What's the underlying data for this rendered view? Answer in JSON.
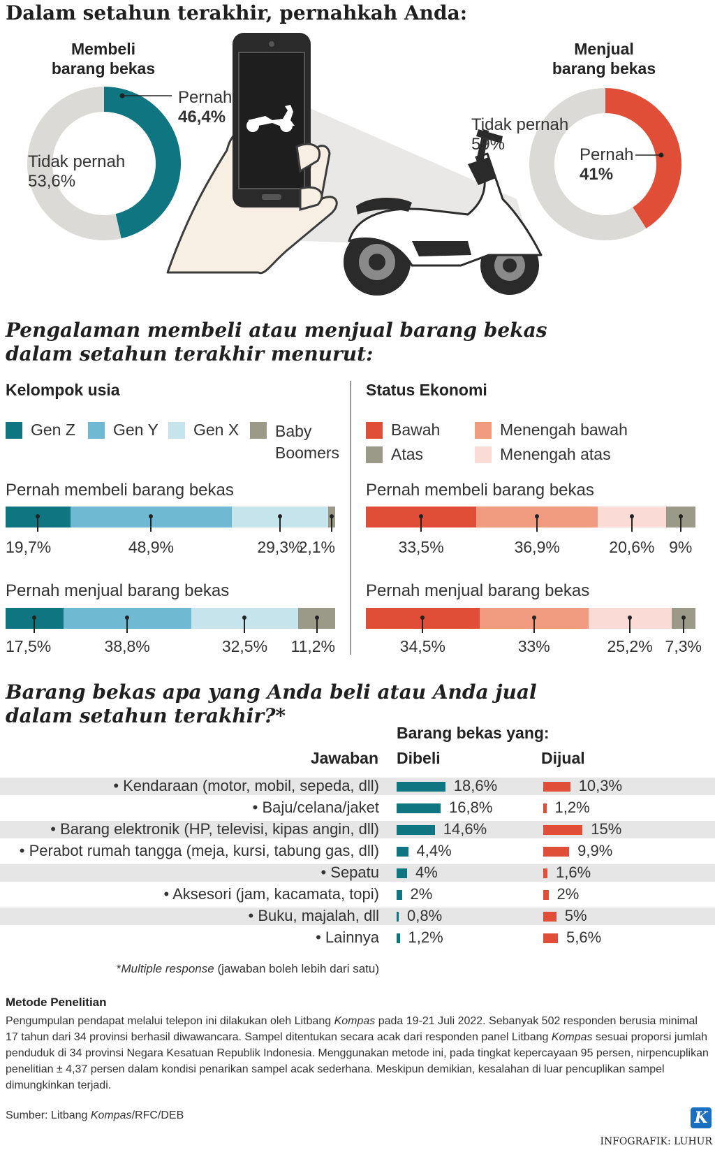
{
  "header": {
    "title": "Dalam setahun terakhir, pernahkah Anda:"
  },
  "donuts": {
    "buy": {
      "title_line1": "Membeli",
      "title_line2": "barang bekas",
      "yes_label": "Pernah",
      "yes_value": "46,4%",
      "no_label": "Tidak pernah",
      "no_value": "53,6%",
      "yes_share": 0.464,
      "color": "#0f7580"
    },
    "sell": {
      "title_line1": "Menjual",
      "title_line2": "barang bekas",
      "yes_label": "Pernah",
      "yes_value": "41%",
      "no_label": "Tidak pernah",
      "no_value": "59%",
      "yes_share": 0.41,
      "color": "#e04e37"
    },
    "rest_color": "#dcdad6"
  },
  "section2": {
    "title_line1": "Pengalaman membeli atau menjual barang bekas",
    "title_line2": "dalam setahun terakhir menurut:",
    "age": {
      "heading": "Kelompok usia",
      "legend": [
        {
          "label": "Gen Z",
          "color": "#0f7580"
        },
        {
          "label": "Gen Y",
          "color": "#6fb9d2"
        },
        {
          "label": "Gen X",
          "color": "#c5e4ec"
        },
        {
          "label_line1": "Baby",
          "label_line2": "Boomers",
          "color": "#9b9a88"
        }
      ],
      "buy": {
        "label": "Pernah membeli barang bekas",
        "values": [
          19.7,
          48.9,
          29.3,
          2.1
        ],
        "texts": [
          "19,7%",
          "48,9%",
          "29,3%",
          "2,1%"
        ]
      },
      "sell": {
        "label": "Pernah menjual barang bekas",
        "values": [
          17.5,
          38.8,
          32.5,
          11.2
        ],
        "texts": [
          "17,5%",
          "38,8%",
          "32,5%",
          "11,2%"
        ]
      }
    },
    "econ": {
      "heading": "Status Ekonomi",
      "legend": [
        {
          "label": "Bawah",
          "color": "#e04e37"
        },
        {
          "label": "Menengah bawah",
          "color": "#f09a80"
        },
        {
          "label": "Atas",
          "color": "#9b9a88"
        },
        {
          "label": "Menengah atas",
          "color": "#fadbd5"
        }
      ],
      "buy": {
        "label": "Pernah membeli barang bekas",
        "values": [
          33.5,
          36.9,
          20.6,
          9
        ],
        "texts": [
          "33,5%",
          "36,9%",
          "20,6%",
          "9%"
        ]
      },
      "sell": {
        "label": "Pernah menjual barang bekas",
        "values": [
          34.5,
          33,
          25.2,
          7.3
        ],
        "texts": [
          "34,5%",
          "33%",
          "25,2%",
          "7,3%"
        ]
      }
    }
  },
  "section3": {
    "title_line1": "Barang bekas apa yang Anda beli atau Anda jual",
    "title_line2": "dalam setahun terakhir?*",
    "sub_heading": "Barang bekas yang:",
    "col_answer": "Jawaban",
    "col_buy": "Dibeli",
    "col_sell": "Dijual",
    "buy_color": "#0f7580",
    "sell_color": "#e04e37",
    "footnote_star": "*",
    "footnote_italic": "Multiple response",
    "footnote_rest": " (jawaban boleh lebih dari satu)"
  },
  "chart_data": [
    {
      "type": "pie",
      "title": "Membeli barang bekas",
      "categories": [
        "Pernah",
        "Tidak pernah"
      ],
      "values": [
        46.4,
        53.6
      ]
    },
    {
      "type": "pie",
      "title": "Menjual barang bekas",
      "categories": [
        "Pernah",
        "Tidak pernah"
      ],
      "values": [
        41,
        59
      ]
    },
    {
      "type": "bar",
      "title": "Kelompok usia",
      "stacked": true,
      "categories": [
        "Pernah membeli barang bekas",
        "Pernah menjual barang bekas"
      ],
      "series": [
        {
          "name": "Gen Z",
          "values": [
            19.7,
            17.5
          ]
        },
        {
          "name": "Gen Y",
          "values": [
            48.9,
            38.8
          ]
        },
        {
          "name": "Gen X",
          "values": [
            29.3,
            32.5
          ]
        },
        {
          "name": "Baby Boomers",
          "values": [
            2.1,
            11.2
          ]
        }
      ]
    },
    {
      "type": "bar",
      "title": "Status Ekonomi",
      "stacked": true,
      "categories": [
        "Pernah membeli barang bekas",
        "Pernah menjual barang bekas"
      ],
      "series": [
        {
          "name": "Bawah",
          "values": [
            33.5,
            34.5
          ]
        },
        {
          "name": "Menengah bawah",
          "values": [
            36.9,
            33
          ]
        },
        {
          "name": "Menengah atas",
          "values": [
            20.6,
            25.2
          ]
        },
        {
          "name": "Atas",
          "values": [
            9,
            7.3
          ]
        }
      ]
    },
    {
      "type": "bar",
      "title": "Barang bekas apa yang Anda beli atau Anda jual dalam setahun terakhir?*",
      "categories": [
        "• Kendaraan (motor, mobil, sepeda, dll)",
        "• Baju/celana/jaket",
        "• Barang elektronik (HP, televisi, kipas angin, dll)",
        "• Perabot rumah tangga (meja, kursi, tabung gas, dll)",
        "• Sepatu",
        "• Aksesori (jam, kacamata, topi)",
        "• Buku, majalah, dll",
        "• Lainnya"
      ],
      "series": [
        {
          "name": "Dibeli",
          "values": [
            18.6,
            16.8,
            14.6,
            4.4,
            4,
            2,
            0.8,
            1.2
          ],
          "texts": [
            "18,6%",
            "16,8%",
            "14,6%",
            "4,4%",
            "4%",
            "2%",
            "0,8%",
            "1,2%"
          ]
        },
        {
          "name": "Dijual",
          "values": [
            10.3,
            1.2,
            15,
            9.9,
            1.6,
            2,
            5,
            5.6
          ],
          "texts": [
            "10,3%",
            "1,2%",
            "15%",
            "9,9%",
            "1,6%",
            "2%",
            "5%",
            "5,6%"
          ]
        }
      ]
    }
  ],
  "method": {
    "heading": "Metode Penelitian",
    "p1": "Pengumpulan pendapat melalui telepon ini dilakukan oleh Litbang ",
    "kompas": "Kompas",
    "p2": " pada 19-21 Juli 2022. Sebanyak 502 responden berusia minimal 17 tahun dari 34 provinsi berhasil diwawancara. Sampel ditentukan secara acak dari responden panel Litbang ",
    "p3": " sesuai proporsi jumlah penduduk di 34 provinsi Negara Kesatuan Republik Indonesia. Menggunakan metode ini, pada tingkat kepercayaan 95 persen, nirpencuplikan penelitian ± 4,37 persen dalam kondisi penarikan sampel acak sederhana. Meskipun demikian, kesalahan di luar pencuplikan sampel dimungkinkan terjadi."
  },
  "footer": {
    "source_prefix": "Sumber: Litbang ",
    "source_italic": "Kompas",
    "source_suffix": "/RFC/DEB",
    "credit": "INFOGRAFIK: LUHUR",
    "logo_letter": "K"
  }
}
